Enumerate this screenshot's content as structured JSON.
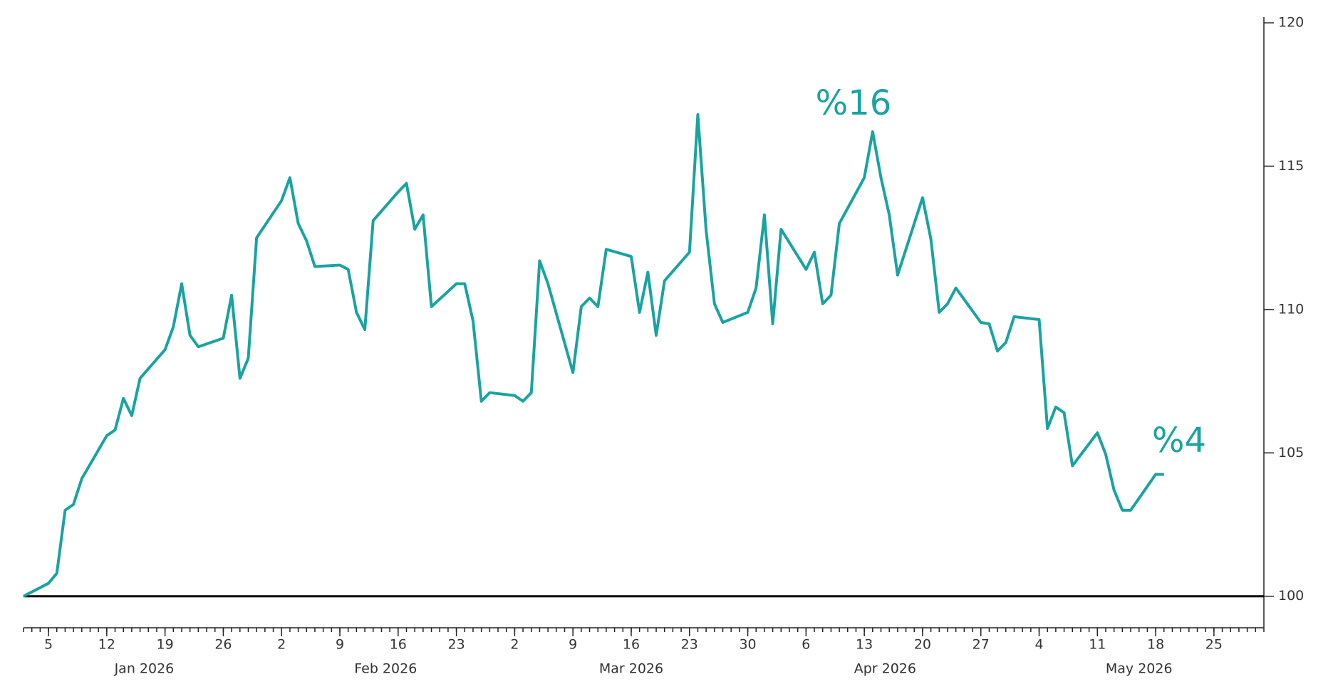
{
  "chart_data": {
    "type": "line",
    "x": [
      "2026-01-02",
      "2026-01-05",
      "2026-01-06",
      "2026-01-07",
      "2026-01-08",
      "2026-01-09",
      "2026-01-12",
      "2026-01-13",
      "2026-01-14",
      "2026-01-15",
      "2026-01-16",
      "2026-01-19",
      "2026-01-20",
      "2026-01-21",
      "2026-01-22",
      "2026-01-23",
      "2026-01-26",
      "2026-01-27",
      "2026-01-28",
      "2026-01-29",
      "2026-01-30",
      "2026-02-02",
      "2026-02-03",
      "2026-02-04",
      "2026-02-05",
      "2026-02-06",
      "2026-02-09",
      "2026-02-10",
      "2026-02-11",
      "2026-02-12",
      "2026-02-13",
      "2026-02-16",
      "2026-02-17",
      "2026-02-18",
      "2026-02-19",
      "2026-02-20",
      "2026-02-23",
      "2026-02-24",
      "2026-02-25",
      "2026-02-26",
      "2026-02-27",
      "2026-03-02",
      "2026-03-03",
      "2026-03-04",
      "2026-03-05",
      "2026-03-06",
      "2026-03-09",
      "2026-03-10",
      "2026-03-11",
      "2026-03-12",
      "2026-03-13",
      "2026-03-16",
      "2026-03-17",
      "2026-03-18",
      "2026-03-19",
      "2026-03-20",
      "2026-03-23",
      "2026-03-24",
      "2026-03-25",
      "2026-03-26",
      "2026-03-27",
      "2026-03-30",
      "2026-03-31",
      "2026-04-01",
      "2026-04-02",
      "2026-04-03",
      "2026-04-06",
      "2026-04-07",
      "2026-04-08",
      "2026-04-09",
      "2026-04-10",
      "2026-04-13",
      "2026-04-14",
      "2026-04-15",
      "2026-04-16",
      "2026-04-17",
      "2026-04-20",
      "2026-04-21",
      "2026-04-22",
      "2026-04-23",
      "2026-04-24",
      "2026-04-27",
      "2026-04-28",
      "2026-04-29",
      "2026-04-30",
      "2026-05-01",
      "2026-05-04",
      "2026-05-05",
      "2026-05-06",
      "2026-05-07",
      "2026-05-08",
      "2026-05-11",
      "2026-05-12",
      "2026-05-13",
      "2026-05-14",
      "2026-05-15",
      "2026-05-18",
      "2026-05-19"
    ],
    "series": [
      {
        "color": "#19a3a1",
        "values": [
          100,
          100.45,
          100.8,
          103.0,
          103.2,
          104.1,
          105.6,
          105.8,
          106.9,
          106.3,
          107.6,
          108.6,
          109.4,
          110.9,
          109.1,
          108.7,
          109.0,
          110.5,
          107.6,
          108.3,
          112.5,
          113.8,
          114.6,
          113.0,
          112.4,
          111.5,
          111.55,
          111.4,
          109.9,
          109.3,
          113.1,
          114.1,
          114.4,
          112.8,
          113.3,
          110.1,
          110.9,
          110.9,
          109.6,
          106.8,
          107.1,
          107.0,
          106.8,
          107.1,
          111.7,
          110.9,
          107.8,
          110.1,
          110.4,
          110.1,
          112.1,
          111.85,
          109.9,
          111.3,
          109.1,
          111.0,
          112.0,
          116.8,
          112.75,
          110.2,
          109.55,
          109.9,
          110.75,
          113.3,
          109.5,
          112.8,
          111.4,
          112.0,
          110.2,
          110.5,
          113.0,
          114.6,
          116.2,
          114.6,
          113.3,
          111.2,
          113.9,
          112.45,
          109.9,
          110.2,
          110.75,
          109.55,
          109.5,
          108.55,
          108.85,
          109.75,
          109.65,
          105.85,
          106.6,
          106.4,
          104.55,
          105.7,
          104.95,
          103.7,
          103.0,
          103.0,
          104.25,
          104.25
        ]
      }
    ],
    "annotations": [
      "%16",
      "%4"
    ],
    "reference_line": 100,
    "xlim": [
      "2026-01-02",
      "2026-05-31"
    ],
    "xticks": [
      {
        "value": "2026-01-05",
        "label": "5"
      },
      {
        "value": "2026-01-12",
        "label": "12"
      },
      {
        "value": "2026-01-19",
        "label": "19"
      },
      {
        "value": "2026-01-26",
        "label": "26"
      },
      {
        "value": "2026-02-02",
        "label": "2"
      },
      {
        "value": "2026-02-09",
        "label": "9"
      },
      {
        "value": "2026-02-16",
        "label": "16"
      },
      {
        "value": "2026-02-23",
        "label": "23"
      },
      {
        "value": "2026-03-02",
        "label": "2"
      },
      {
        "value": "2026-03-09",
        "label": "9"
      },
      {
        "value": "2026-03-16",
        "label": "16"
      },
      {
        "value": "2026-03-23",
        "label": "23"
      },
      {
        "value": "2026-03-30",
        "label": "30"
      },
      {
        "value": "2026-04-06",
        "label": "6"
      },
      {
        "value": "2026-04-13",
        "label": "13"
      },
      {
        "value": "2026-04-20",
        "label": "20"
      },
      {
        "value": "2026-04-27",
        "label": "27"
      },
      {
        "value": "2026-05-04",
        "label": "4"
      },
      {
        "value": "2026-05-11",
        "label": "11"
      },
      {
        "value": "2026-05-18",
        "label": "18"
      },
      {
        "value": "2026-05-25",
        "label": "25"
      }
    ],
    "month_labels": [
      {
        "value": "2026-01",
        "label": "Jan 2026"
      },
      {
        "value": "2026-02",
        "label": "Feb 2026"
      },
      {
        "value": "2026-03",
        "label": "Mar 2026"
      },
      {
        "value": "2026-04",
        "label": "Apr 2026"
      },
      {
        "value": "2026-05",
        "label": "May 2026"
      }
    ],
    "ylim": [
      98.9,
      120.2
    ],
    "yticks": [
      100,
      105,
      110,
      115,
      120
    ],
    "y_axis_side": "right"
  }
}
